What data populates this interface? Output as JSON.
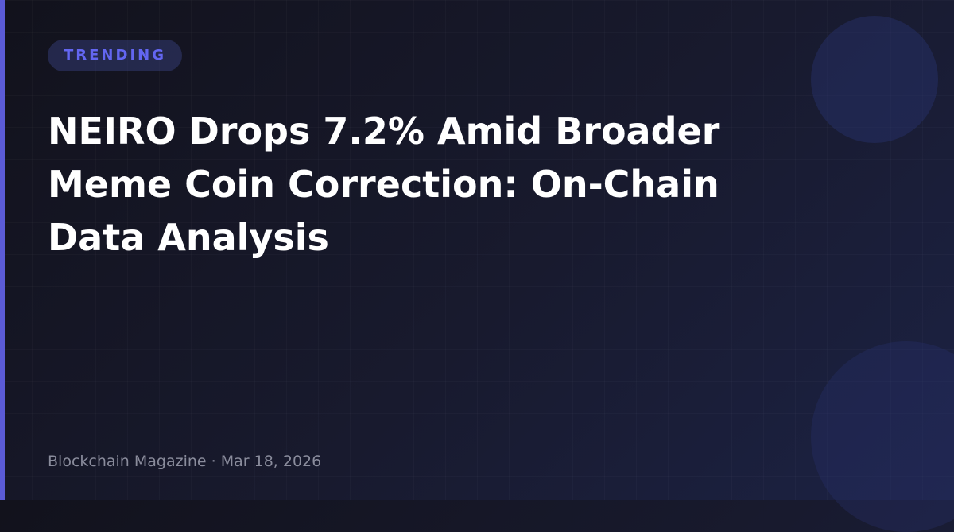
{
  "badge": {
    "label": "TRENDING"
  },
  "title": "NEIRO Drops 7.2% Amid Broader Meme Coin Correction: On-Chain Data Analysis",
  "footer": {
    "source": "Blockchain Magazine",
    "separator": " · ",
    "date": "Mar 18, 2026"
  },
  "colors": {
    "accent": "#5b5bd6",
    "badge_text": "#6366f1",
    "background": "#12121c"
  }
}
